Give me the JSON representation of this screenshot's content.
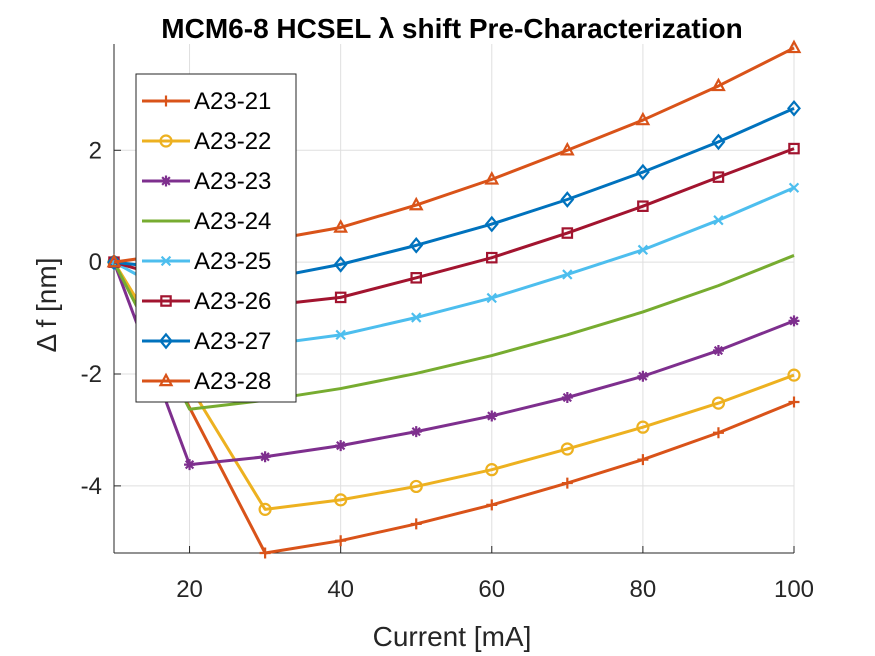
{
  "chart_data": {
    "type": "line",
    "title": "MCM6-8 HCSEL λ shift Pre-Characterization",
    "xlabel": "Current [mA]",
    "ylabel": "Δ f [nm]",
    "xlim": [
      10,
      100
    ],
    "ylim": [
      -5.2,
      3.9
    ],
    "xticks": [
      20,
      40,
      60,
      80,
      100
    ],
    "yticks": [
      -4,
      -2,
      0,
      2
    ],
    "grid": true,
    "legend_position": "top-left",
    "x": [
      10,
      20,
      30,
      40,
      50,
      60,
      70,
      80,
      90,
      100
    ],
    "series": [
      {
        "name": "A23-21",
        "color": "#D95319",
        "marker": "plus",
        "values": [
          0,
          null,
          -5.2,
          -4.98,
          -4.68,
          -4.34,
          -3.95,
          -3.53,
          -3.05,
          -2.5
        ]
      },
      {
        "name": "A23-22",
        "color": "#EDB120",
        "marker": "circle",
        "values": [
          0,
          null,
          -4.42,
          -4.25,
          -4.01,
          -3.71,
          -3.34,
          -2.95,
          -2.52,
          -2.02
        ]
      },
      {
        "name": "A23-23",
        "color": "#7E2F8E",
        "marker": "asterisk",
        "values": [
          0,
          -3.62,
          -3.48,
          -3.28,
          -3.03,
          -2.75,
          -2.42,
          -2.04,
          -1.58,
          -1.05
        ]
      },
      {
        "name": "A23-24",
        "color": "#77AC30",
        "marker": "none",
        "values": [
          0,
          -2.63,
          -2.47,
          -2.26,
          -1.99,
          -1.67,
          -1.3,
          -0.89,
          -0.42,
          0.12
        ]
      },
      {
        "name": "A23-25",
        "color": "#4DBEEE",
        "marker": "x",
        "values": [
          0,
          null,
          -1.48,
          -1.3,
          -0.99,
          -0.64,
          -0.22,
          0.22,
          0.75,
          1.33
        ]
      },
      {
        "name": "A23-26",
        "color": "#A2142F",
        "marker": "square",
        "values": [
          0,
          null,
          -0.78,
          -0.63,
          -0.28,
          0.08,
          0.52,
          1.0,
          1.52,
          2.03
        ]
      },
      {
        "name": "A23-27",
        "color": "#0072BD",
        "marker": "diamond",
        "values": [
          0,
          null,
          -0.3,
          -0.04,
          0.3,
          0.68,
          1.12,
          1.61,
          2.15,
          2.75
        ]
      },
      {
        "name": "A23-28",
        "color": "#D95319",
        "marker": "triangle",
        "values": [
          0,
          null,
          0.38,
          0.62,
          1.02,
          1.48,
          2.0,
          2.54,
          3.15,
          3.83
        ]
      }
    ]
  }
}
